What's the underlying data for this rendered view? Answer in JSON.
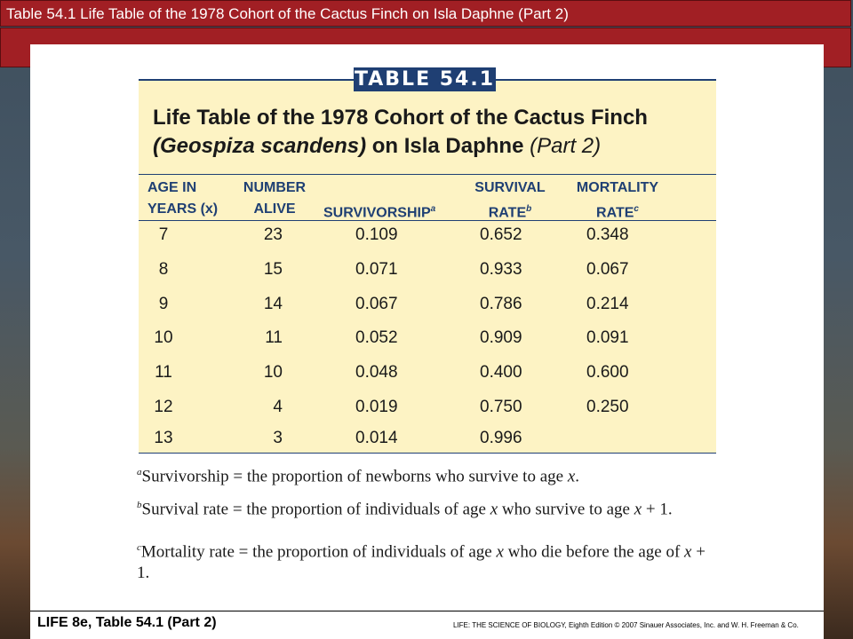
{
  "window": {
    "title": "Table 54.1 Life Table of the 1978 Cohort of the Cactus Finch on Isla Daphne (Part 2)"
  },
  "table": {
    "tag": "TABLE 54.1",
    "title_line1": "Life Table of the 1978 Cohort of the Cactus Finch",
    "title_species": "(Geospiza scandens)",
    "title_on": " on Isla Daphne ",
    "title_part": "(Part 2)",
    "headers": {
      "age_l1": "AGE IN",
      "age_l2": "YEARS (x)",
      "number_l1": "NUMBER",
      "number_l2": "ALIVE",
      "surv": "SURVIVORSHIP",
      "surv_sup": "a",
      "rate_l1": "SURVIVAL",
      "rate_l2": "RATE",
      "rate_sup": "b",
      "mort_l1": "MORTALITY",
      "mort_l2": "RATE",
      "mort_sup": "c"
    },
    "rows": [
      {
        "age": "7",
        "alive": "23",
        "survivorship": "0.109",
        "survival": "0.652",
        "mortality": "0.348"
      },
      {
        "age": "8",
        "alive": "15",
        "survivorship": "0.071",
        "survival": "0.933",
        "mortality": "0.067"
      },
      {
        "age": "9",
        "alive": "14",
        "survivorship": "0.067",
        "survival": "0.786",
        "mortality": "0.214"
      },
      {
        "age": "10",
        "alive": "11",
        "survivorship": "0.052",
        "survival": "0.909",
        "mortality": "0.091"
      },
      {
        "age": "11",
        "alive": "10",
        "survivorship": "0.048",
        "survival": "0.400",
        "mortality": "0.600"
      },
      {
        "age": "12",
        "alive": "4",
        "survivorship": "0.019",
        "survival": "0.750",
        "mortality": "0.250"
      },
      {
        "age": "13",
        "alive": "3",
        "survivorship": "0.014",
        "survival": "0.996",
        "mortality": ""
      }
    ],
    "footnotes": {
      "a_mark": "a",
      "a_text": "Survivorship = the proportion of newborns who survive to age ",
      "a_var": "x",
      "a_end": ".",
      "b_mark": "b",
      "b_text": "Survival rate = the proportion of individuals of age ",
      "b_var": "x",
      "b_text2": " who survive to age ",
      "b_var2": "x",
      "b_end": " + 1.",
      "c_mark": "c",
      "c_text": "Mortality rate = the proportion of individuals of age ",
      "c_var": "x",
      "c_text2": " who die before the age of ",
      "c_var2": "x",
      "c_end": " + 1."
    }
  },
  "footer": {
    "left": "LIFE 8e, Table 54.1 (Part 2)",
    "right": "LIFE: THE SCIENCE OF BIOLOGY, Eighth Edition  © 2007 Sinauer Associates, Inc. and W. H. Freeman & Co."
  },
  "colors": {
    "title_bar": "#a11f24",
    "table_navy": "#1f3f73",
    "table_panel": "#fdf3c4"
  }
}
